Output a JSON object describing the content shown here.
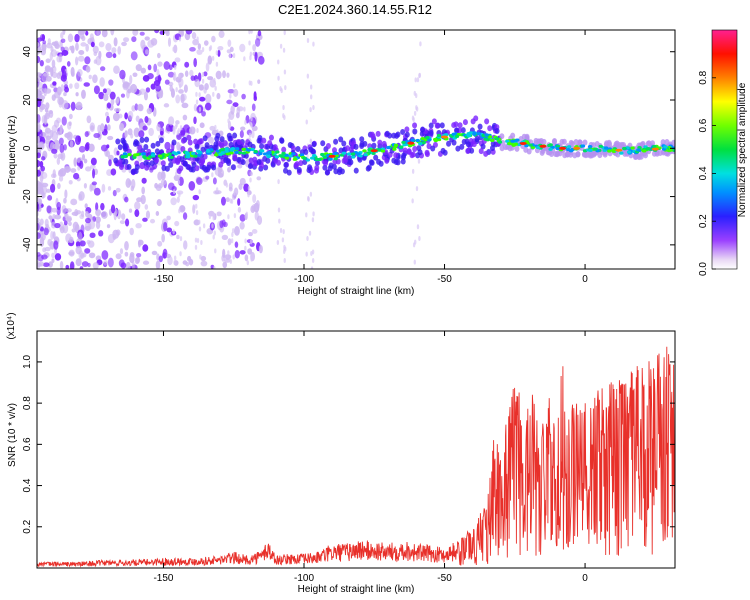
{
  "chart_data": [
    {
      "type": "heatmap",
      "title": "C2E1.2024.360.14.55.R12",
      "xlabel": "Height of straight line (km)",
      "ylabel": "Frequency (Hz)",
      "xlim": [
        -195,
        32
      ],
      "ylim": [
        -50,
        49
      ],
      "xticks": [
        -150,
        -100,
        -50,
        0
      ],
      "yticks": [
        -40,
        -20,
        0,
        20,
        40
      ],
      "colorbar": {
        "label": "Normalized spectral amplitude",
        "range": [
          0,
          1
        ],
        "ticks": [
          "0.0",
          "0.2",
          "0.4",
          "0.6",
          "0.8"
        ],
        "tick_values": [
          0.0,
          0.2,
          0.4,
          0.6,
          0.8
        ],
        "colormap": "rainbow-white"
      },
      "ridge": [
        {
          "x": -165,
          "y": -3
        },
        {
          "x": -150,
          "y": -3
        },
        {
          "x": -135,
          "y": -2
        },
        {
          "x": -125,
          "y": -1
        },
        {
          "x": -115,
          "y": -2
        },
        {
          "x": -100,
          "y": -4
        },
        {
          "x": -85,
          "y": -3
        },
        {
          "x": -70,
          "y": 0
        },
        {
          "x": -55,
          "y": 4
        },
        {
          "x": -40,
          "y": 6
        },
        {
          "x": -30,
          "y": 3
        },
        {
          "x": -22,
          "y": 2
        },
        {
          "x": -10,
          "y": 0
        },
        {
          "x": 0,
          "y": 0
        },
        {
          "x": 15,
          "y": -1
        },
        {
          "x": 30,
          "y": 0
        }
      ]
    },
    {
      "type": "line",
      "xlabel": "Height of straight line (km)",
      "ylabel": "SNR (10 * v/v)",
      "y_multiplier": "(x10⁴)",
      "xlim": [
        -195,
        32
      ],
      "ylim": [
        0,
        1.15
      ],
      "xticks": [
        -150,
        -100,
        -50,
        0
      ],
      "yticks": [
        "0.2",
        "0.4",
        "0.6",
        "0.8",
        "1.0"
      ],
      "ytick_values": [
        0.2,
        0.4,
        0.6,
        0.8,
        1.0
      ],
      "color": "#e8302a",
      "series": [
        {
          "x": [
            -195,
            -180,
            -170,
            -160,
            -150,
            -140,
            -130,
            -125,
            -120,
            -115,
            -113,
            -110,
            -105,
            -100,
            -95,
            -90,
            -85,
            -80,
            -75,
            -70,
            -65,
            -60,
            -55,
            -50,
            -45,
            -40,
            -38,
            -35,
            -32,
            -30,
            -28,
            -26,
            -24,
            -22,
            -20,
            -18,
            -16,
            -14,
            -12,
            -10,
            -8,
            -6,
            -4,
            -2,
            0,
            5,
            10,
            15,
            20,
            25,
            30
          ],
          "y": [
            0.03,
            0.03,
            0.04,
            0.04,
            0.05,
            0.05,
            0.06,
            0.08,
            0.06,
            0.09,
            0.15,
            0.06,
            0.07,
            0.07,
            0.08,
            0.12,
            0.12,
            0.14,
            0.13,
            0.12,
            0.14,
            0.12,
            0.11,
            0.1,
            0.14,
            0.2,
            0.25,
            0.32,
            0.7,
            0.55,
            0.8,
            0.85,
            1.1,
            0.6,
            0.9,
            0.85,
            0.55,
            1.0,
            0.75,
            0.65,
            1.05,
            0.7,
            0.9,
            0.78,
            0.8,
            0.88,
            0.92,
            0.95,
            1.0,
            1.05,
            1.1
          ]
        }
      ]
    }
  ]
}
